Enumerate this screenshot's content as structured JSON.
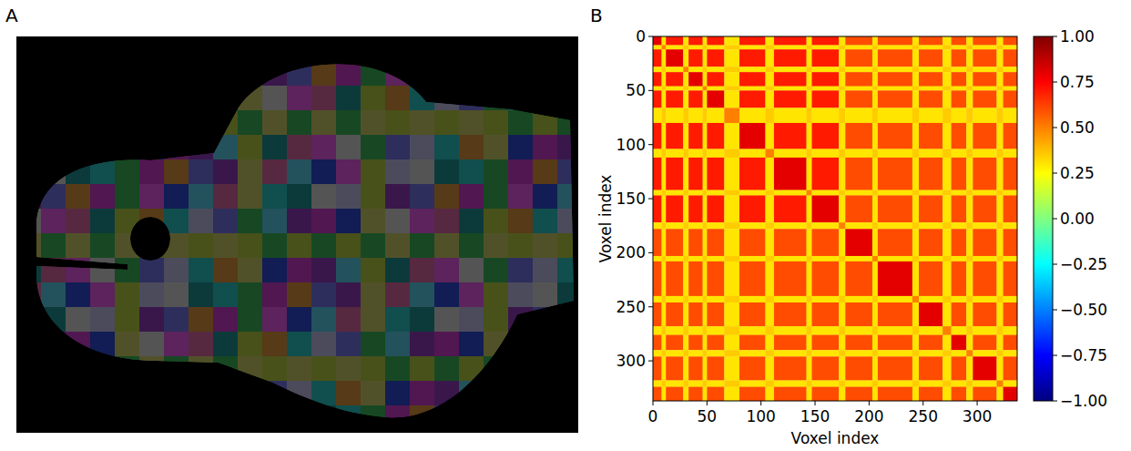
{
  "chart_data": [
    {
      "type": "image",
      "panel": "A"
    },
    {
      "type": "heatmap",
      "panel": "B",
      "xlabel": "Voxel index",
      "ylabel": "Voxel index",
      "xlim": [
        0,
        337
      ],
      "ylim": [
        0,
        337
      ],
      "xticks": [
        0,
        50,
        100,
        150,
        200,
        250,
        300
      ],
      "yticks": [
        0,
        50,
        100,
        150,
        200,
        250,
        300
      ],
      "color": "jet",
      "edges": [
        0,
        8,
        12,
        28,
        33,
        46,
        50,
        66,
        80,
        104,
        112,
        142,
        147,
        172,
        178,
        203,
        208,
        240,
        246,
        268,
        276,
        290,
        296,
        318,
        324,
        337
      ],
      "values": [
        [
          0.8,
          0.3,
          0.7,
          0.3,
          0.7,
          0.3,
          0.7,
          0.3,
          0.7,
          0.3,
          0.7,
          0.3,
          0.7,
          0.3,
          0.6,
          0.3,
          0.6,
          0.3,
          0.6,
          0.3,
          0.6,
          0.3,
          0.6,
          0.3,
          0.6
        ],
        [
          0.3,
          0.5,
          0.3,
          0.35,
          0.3,
          0.35,
          0.3,
          0.35,
          0.3,
          0.35,
          0.3,
          0.35,
          0.3,
          0.35,
          0.3,
          0.35,
          0.3,
          0.35,
          0.3,
          0.35,
          0.3,
          0.35,
          0.3,
          0.35,
          0.3
        ],
        [
          0.7,
          0.3,
          0.8,
          0.3,
          0.7,
          0.3,
          0.7,
          0.3,
          0.7,
          0.3,
          0.7,
          0.3,
          0.7,
          0.3,
          0.6,
          0.3,
          0.6,
          0.3,
          0.6,
          0.3,
          0.6,
          0.3,
          0.6,
          0.3,
          0.6
        ],
        [
          0.3,
          0.35,
          0.3,
          0.5,
          0.3,
          0.35,
          0.3,
          0.35,
          0.3,
          0.35,
          0.3,
          0.35,
          0.3,
          0.35,
          0.3,
          0.35,
          0.3,
          0.35,
          0.3,
          0.35,
          0.3,
          0.35,
          0.3,
          0.35,
          0.3
        ],
        [
          0.7,
          0.3,
          0.7,
          0.3,
          0.8,
          0.3,
          0.7,
          0.3,
          0.7,
          0.3,
          0.7,
          0.3,
          0.7,
          0.3,
          0.6,
          0.3,
          0.6,
          0.3,
          0.6,
          0.3,
          0.6,
          0.3,
          0.6,
          0.3,
          0.6
        ],
        [
          0.3,
          0.35,
          0.3,
          0.35,
          0.3,
          0.5,
          0.3,
          0.35,
          0.3,
          0.35,
          0.3,
          0.35,
          0.3,
          0.35,
          0.3,
          0.35,
          0.3,
          0.35,
          0.3,
          0.35,
          0.3,
          0.35,
          0.3,
          0.35,
          0.3
        ],
        [
          0.7,
          0.3,
          0.7,
          0.3,
          0.7,
          0.3,
          0.8,
          0.3,
          0.7,
          0.3,
          0.7,
          0.3,
          0.7,
          0.3,
          0.6,
          0.3,
          0.6,
          0.3,
          0.6,
          0.3,
          0.6,
          0.3,
          0.6,
          0.3,
          0.6
        ],
        [
          0.3,
          0.35,
          0.3,
          0.35,
          0.3,
          0.35,
          0.3,
          0.5,
          0.3,
          0.35,
          0.3,
          0.35,
          0.3,
          0.35,
          0.3,
          0.35,
          0.3,
          0.35,
          0.3,
          0.35,
          0.3,
          0.35,
          0.3,
          0.35,
          0.3
        ],
        [
          0.7,
          0.3,
          0.7,
          0.3,
          0.7,
          0.3,
          0.7,
          0.3,
          0.8,
          0.3,
          0.7,
          0.3,
          0.7,
          0.3,
          0.6,
          0.3,
          0.6,
          0.3,
          0.6,
          0.3,
          0.6,
          0.3,
          0.6,
          0.3,
          0.6
        ],
        [
          0.3,
          0.35,
          0.3,
          0.35,
          0.3,
          0.35,
          0.3,
          0.35,
          0.3,
          0.5,
          0.3,
          0.35,
          0.3,
          0.35,
          0.3,
          0.35,
          0.3,
          0.35,
          0.3,
          0.35,
          0.3,
          0.35,
          0.3,
          0.35,
          0.3
        ],
        [
          0.7,
          0.3,
          0.7,
          0.3,
          0.7,
          0.3,
          0.7,
          0.3,
          0.7,
          0.3,
          0.8,
          0.3,
          0.7,
          0.3,
          0.6,
          0.3,
          0.6,
          0.3,
          0.6,
          0.3,
          0.6,
          0.3,
          0.6,
          0.3,
          0.6
        ],
        [
          0.3,
          0.35,
          0.3,
          0.35,
          0.3,
          0.35,
          0.3,
          0.35,
          0.3,
          0.35,
          0.3,
          0.5,
          0.3,
          0.35,
          0.3,
          0.35,
          0.3,
          0.35,
          0.3,
          0.35,
          0.3,
          0.35,
          0.3,
          0.35,
          0.3
        ],
        [
          0.7,
          0.3,
          0.7,
          0.3,
          0.7,
          0.3,
          0.7,
          0.3,
          0.7,
          0.3,
          0.7,
          0.3,
          0.8,
          0.3,
          0.6,
          0.3,
          0.6,
          0.3,
          0.6,
          0.3,
          0.6,
          0.3,
          0.6,
          0.3,
          0.6
        ],
        [
          0.3,
          0.35,
          0.3,
          0.35,
          0.3,
          0.35,
          0.3,
          0.35,
          0.3,
          0.35,
          0.3,
          0.35,
          0.3,
          0.5,
          0.3,
          0.35,
          0.3,
          0.35,
          0.3,
          0.35,
          0.3,
          0.35,
          0.3,
          0.35,
          0.3
        ],
        [
          0.6,
          0.3,
          0.6,
          0.3,
          0.6,
          0.3,
          0.6,
          0.3,
          0.6,
          0.3,
          0.6,
          0.3,
          0.6,
          0.3,
          0.8,
          0.3,
          0.6,
          0.3,
          0.6,
          0.3,
          0.6,
          0.3,
          0.6,
          0.3,
          0.6
        ],
        [
          0.3,
          0.35,
          0.3,
          0.35,
          0.3,
          0.35,
          0.3,
          0.35,
          0.3,
          0.35,
          0.3,
          0.35,
          0.3,
          0.35,
          0.3,
          0.5,
          0.3,
          0.35,
          0.3,
          0.35,
          0.3,
          0.35,
          0.3,
          0.35,
          0.3
        ],
        [
          0.6,
          0.3,
          0.6,
          0.3,
          0.6,
          0.3,
          0.6,
          0.3,
          0.6,
          0.3,
          0.6,
          0.3,
          0.6,
          0.3,
          0.6,
          0.3,
          0.8,
          0.3,
          0.6,
          0.3,
          0.6,
          0.3,
          0.6,
          0.3,
          0.6
        ],
        [
          0.3,
          0.35,
          0.3,
          0.35,
          0.3,
          0.35,
          0.3,
          0.35,
          0.3,
          0.35,
          0.3,
          0.35,
          0.3,
          0.35,
          0.3,
          0.35,
          0.3,
          0.5,
          0.3,
          0.35,
          0.3,
          0.35,
          0.3,
          0.35,
          0.3
        ],
        [
          0.6,
          0.3,
          0.6,
          0.3,
          0.6,
          0.3,
          0.6,
          0.3,
          0.6,
          0.3,
          0.6,
          0.3,
          0.6,
          0.3,
          0.6,
          0.3,
          0.6,
          0.3,
          0.8,
          0.3,
          0.6,
          0.3,
          0.6,
          0.3,
          0.6
        ],
        [
          0.3,
          0.35,
          0.3,
          0.35,
          0.3,
          0.35,
          0.3,
          0.35,
          0.3,
          0.35,
          0.3,
          0.35,
          0.3,
          0.35,
          0.3,
          0.35,
          0.3,
          0.35,
          0.3,
          0.5,
          0.3,
          0.35,
          0.3,
          0.35,
          0.3
        ],
        [
          0.6,
          0.3,
          0.6,
          0.3,
          0.6,
          0.3,
          0.6,
          0.3,
          0.6,
          0.3,
          0.6,
          0.3,
          0.6,
          0.3,
          0.6,
          0.3,
          0.6,
          0.3,
          0.6,
          0.3,
          0.8,
          0.3,
          0.6,
          0.3,
          0.6
        ],
        [
          0.3,
          0.35,
          0.3,
          0.35,
          0.3,
          0.35,
          0.3,
          0.35,
          0.3,
          0.35,
          0.3,
          0.35,
          0.3,
          0.35,
          0.3,
          0.35,
          0.3,
          0.35,
          0.3,
          0.35,
          0.3,
          0.5,
          0.3,
          0.35,
          0.3
        ],
        [
          0.6,
          0.3,
          0.6,
          0.3,
          0.6,
          0.3,
          0.6,
          0.3,
          0.6,
          0.3,
          0.6,
          0.3,
          0.6,
          0.3,
          0.6,
          0.3,
          0.6,
          0.3,
          0.6,
          0.3,
          0.6,
          0.3,
          0.8,
          0.3,
          0.6
        ],
        [
          0.3,
          0.35,
          0.3,
          0.35,
          0.3,
          0.35,
          0.3,
          0.35,
          0.3,
          0.35,
          0.3,
          0.35,
          0.3,
          0.35,
          0.3,
          0.35,
          0.3,
          0.35,
          0.3,
          0.35,
          0.3,
          0.35,
          0.3,
          0.5,
          0.3
        ],
        [
          0.6,
          0.3,
          0.6,
          0.3,
          0.6,
          0.3,
          0.6,
          0.3,
          0.6,
          0.3,
          0.6,
          0.3,
          0.6,
          0.3,
          0.6,
          0.3,
          0.6,
          0.3,
          0.6,
          0.3,
          0.6,
          0.3,
          0.6,
          0.3,
          0.8
        ]
      ],
      "colorbar": {
        "range": [
          -1,
          1
        ],
        "ticks": [
          {
            "value": -1,
            "label": "−1.00"
          },
          {
            "value": -0.75,
            "label": "−0.75"
          },
          {
            "value": -0.5,
            "label": "−0.50"
          },
          {
            "value": -0.25,
            "label": "−0.25"
          },
          {
            "value": 0,
            "label": "0.00"
          },
          {
            "value": 0.25,
            "label": "0.25"
          },
          {
            "value": 0.5,
            "label": "0.50"
          },
          {
            "value": 0.75,
            "label": "0.75"
          },
          {
            "value": 1,
            "label": "1.00"
          }
        ]
      }
    }
  ]
}
